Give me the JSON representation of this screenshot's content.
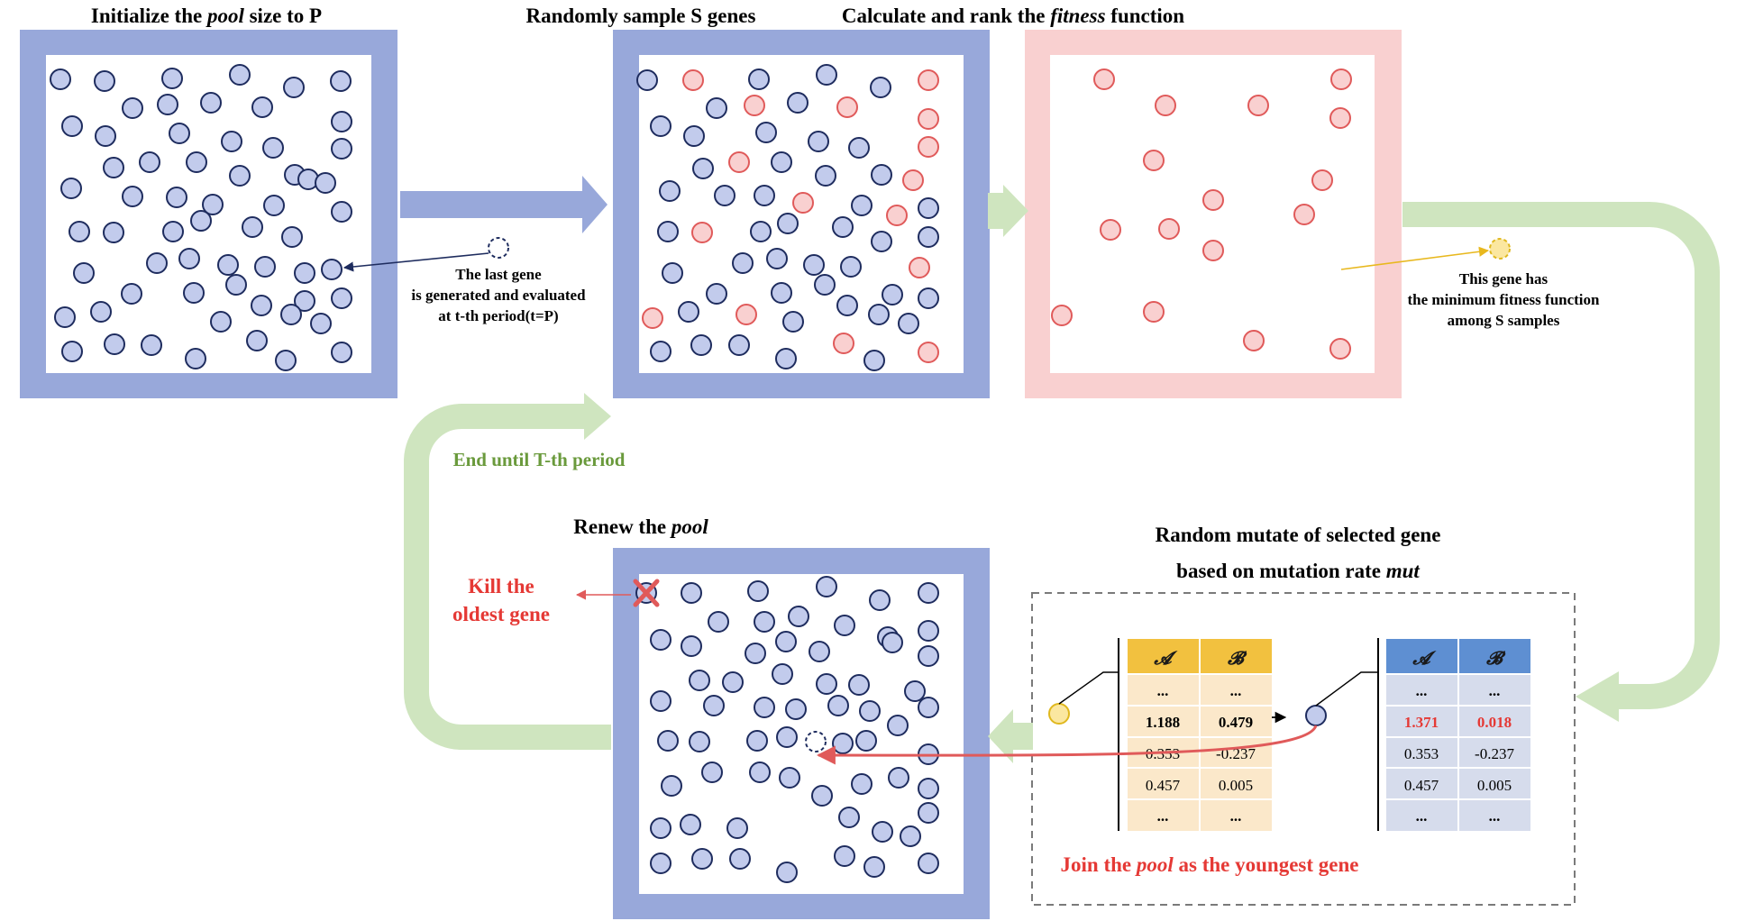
{
  "colors": {
    "pool_frame": "#98a8da",
    "fitness_frame": "#f9d0d0",
    "gene_fill": "#c2cbec",
    "gene_stroke": "#1e2c5e",
    "sample_fill": "#f9d0d0",
    "sample_stroke": "#e05a5a",
    "best_fill": "#fbe7a0",
    "best_stroke": "#e0b81e",
    "green_arrow": "#cfe5bf",
    "green_text": "#6a9a3c",
    "red_text": "#e53935",
    "table_head_orange": "#f2c13f",
    "table_body_orange": "#fbe8ca",
    "table_head_blue": "#5e8fd2",
    "table_body_blue": "#d6dcec"
  },
  "titles": {
    "init_pre": "Initialize the ",
    "init_em": "pool",
    "init_post": " size to P",
    "sample": "Randomly sample S genes",
    "fitness_pre": "Calculate and rank the ",
    "fitness_em": "fitness",
    "fitness_post": " function",
    "renew_pre": "Renew the ",
    "renew_em": "pool",
    "mutate_line1": "Random mutate of selected gene",
    "mutate_line2_pre": "based on mutation rate ",
    "mutate_line2_em": "mut"
  },
  "notes": {
    "last_gene_1": "The last gene",
    "last_gene_2": "is generated and evaluated",
    "last_gene_3": "at t-th period(t=P)",
    "best_gene_1": "This gene has",
    "best_gene_2": "the minimum fitness function",
    "best_gene_3": "among S samples",
    "loop": "End until T-th period",
    "kill_1": "Kill the",
    "kill_2": "oldest gene",
    "join_pre": "Join the ",
    "join_em": "pool",
    "join_post": " as the youngest gene"
  },
  "tables": {
    "before": {
      "headers": [
        "𝓐",
        "𝓑"
      ],
      "rows": [
        [
          "...",
          "..."
        ],
        [
          "1.188",
          "0.479"
        ],
        [
          "0.353",
          "-0.237"
        ],
        [
          "0.457",
          "0.005"
        ],
        [
          "...",
          "..."
        ]
      ]
    },
    "after": {
      "headers": [
        "𝓐",
        "𝓑"
      ],
      "rows": [
        [
          "...",
          "..."
        ],
        [
          "1.371",
          "0.018"
        ],
        [
          "0.353",
          "-0.237"
        ],
        [
          "0.457",
          "0.005"
        ],
        [
          "...",
          "..."
        ]
      ]
    }
  }
}
